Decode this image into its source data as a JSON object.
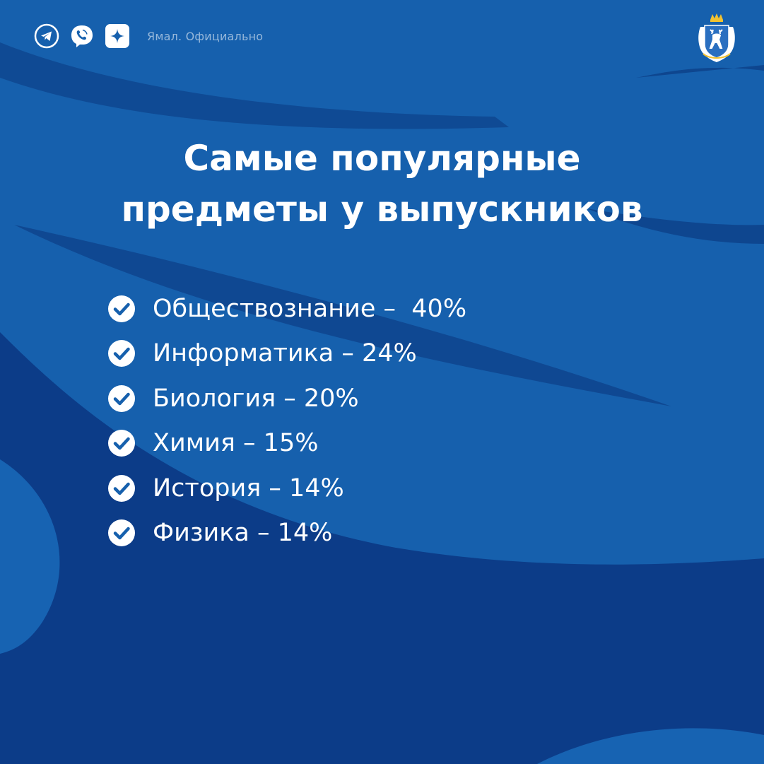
{
  "header": {
    "social_icons": [
      "telegram-icon",
      "viber-icon",
      "max-messenger-icon"
    ],
    "brand": "Ямал. Официально",
    "emblem": "yamal-coat-of-arms"
  },
  "title": {
    "line1": "Самые популярные",
    "line2": "предметы у выпускников"
  },
  "subjects": [
    {
      "label": "Обществознание –  40%",
      "subject": "Обществознание",
      "percent": 40
    },
    {
      "label": "Информатика – 24%",
      "subject": "Информатика",
      "percent": 24
    },
    {
      "label": "Биология – 20%",
      "subject": "Биология",
      "percent": 20
    },
    {
      "label": "Химия – 15%",
      "subject": "Химия",
      "percent": 15
    },
    {
      "label": "История – 14%",
      "subject": "История",
      "percent": 14
    },
    {
      "label": "Физика – 14%",
      "subject": "Физика",
      "percent": 14
    }
  ],
  "colors": {
    "background": "#1660ad",
    "dark_shape": "#0d3f8c",
    "text": "#ffffff",
    "check_fill": "#ffffff",
    "check_mark": "#1660ad"
  }
}
